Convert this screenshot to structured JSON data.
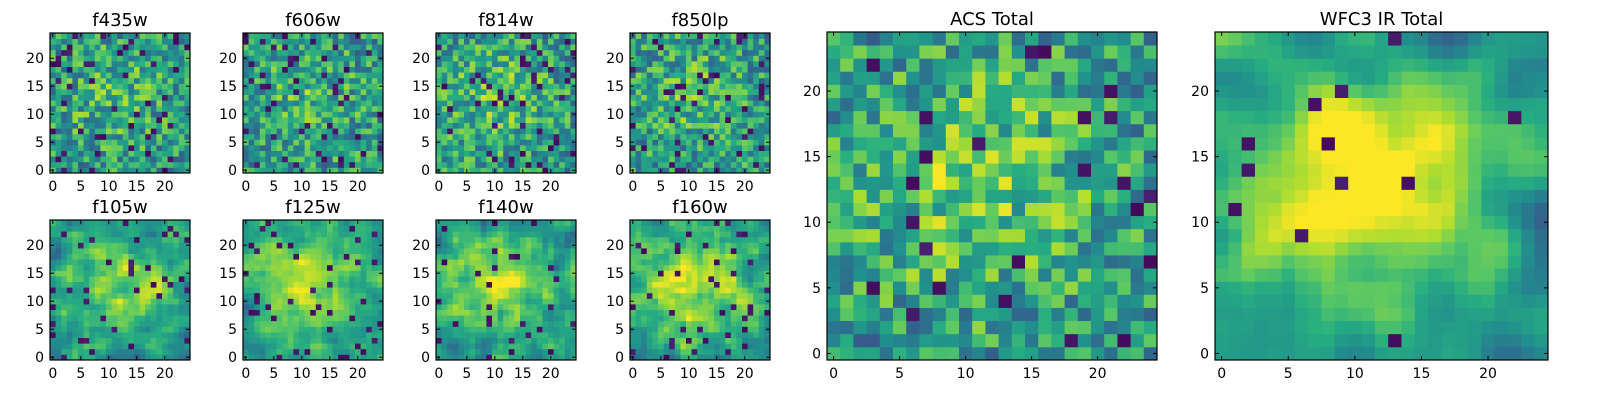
{
  "chart_data": [
    {
      "type": "heatmap",
      "title": "f435w",
      "grid": 25,
      "colormap": "viridis",
      "seed": 11,
      "smooth": 0,
      "centerBoost": 0.15,
      "dark": 0.09,
      "xticks": [
        0,
        5,
        10,
        15,
        20
      ],
      "yticks": [
        0,
        5,
        10,
        15,
        20
      ],
      "xlim": [
        -0.5,
        24.5
      ],
      "ylim": [
        -0.5,
        24.5
      ]
    },
    {
      "type": "heatmap",
      "title": "f606w",
      "grid": 25,
      "colormap": "viridis",
      "seed": 23,
      "smooth": 0,
      "centerBoost": 0.15,
      "dark": 0.08,
      "xticks": [
        0,
        5,
        10,
        15,
        20
      ],
      "yticks": [
        0,
        5,
        10,
        15,
        20
      ],
      "xlim": [
        -0.5,
        24.5
      ],
      "ylim": [
        -0.5,
        24.5
      ]
    },
    {
      "type": "heatmap",
      "title": "f814w",
      "grid": 25,
      "colormap": "viridis",
      "seed": 37,
      "smooth": 0,
      "centerBoost": 0.2,
      "dark": 0.07,
      "xticks": [
        0,
        5,
        10,
        15,
        20
      ],
      "yticks": [
        0,
        5,
        10,
        15,
        20
      ],
      "xlim": [
        -0.5,
        24.5
      ],
      "ylim": [
        -0.5,
        24.5
      ]
    },
    {
      "type": "heatmap",
      "title": "f850lp",
      "grid": 25,
      "colormap": "viridis",
      "seed": 41,
      "smooth": 0,
      "centerBoost": 0.15,
      "dark": 0.08,
      "xticks": [
        0,
        5,
        10,
        15,
        20
      ],
      "yticks": [
        0,
        5,
        10,
        15,
        20
      ],
      "xlim": [
        -0.5,
        24.5
      ],
      "ylim": [
        -0.5,
        24.5
      ]
    },
    {
      "type": "heatmap",
      "title": "f105w",
      "grid": 25,
      "colormap": "viridis",
      "seed": 53,
      "smooth": 1,
      "centerBoost": 0.35,
      "dark": 0.05,
      "xticks": [
        0,
        5,
        10,
        15,
        20
      ],
      "yticks": [
        0,
        5,
        10,
        15,
        20
      ],
      "xlim": [
        -0.5,
        24.5
      ],
      "ylim": [
        -0.5,
        24.5
      ]
    },
    {
      "type": "heatmap",
      "title": "f125w",
      "grid": 25,
      "colormap": "viridis",
      "seed": 67,
      "smooth": 1,
      "centerBoost": 0.35,
      "dark": 0.06,
      "xticks": [
        0,
        5,
        10,
        15,
        20
      ],
      "yticks": [
        0,
        5,
        10,
        15,
        20
      ],
      "xlim": [
        -0.5,
        24.5
      ],
      "ylim": [
        -0.5,
        24.5
      ]
    },
    {
      "type": "heatmap",
      "title": "f140w",
      "grid": 25,
      "colormap": "viridis",
      "seed": 79,
      "smooth": 1,
      "centerBoost": 0.4,
      "dark": 0.04,
      "xticks": [
        0,
        5,
        10,
        15,
        20
      ],
      "yticks": [
        0,
        5,
        10,
        15,
        20
      ],
      "xlim": [
        -0.5,
        24.5
      ],
      "ylim": [
        -0.5,
        24.5
      ]
    },
    {
      "type": "heatmap",
      "title": "f160w",
      "grid": 25,
      "colormap": "viridis",
      "seed": 83,
      "smooth": 1,
      "centerBoost": 0.4,
      "dark": 0.06,
      "xticks": [
        0,
        5,
        10,
        15,
        20
      ],
      "yticks": [
        0,
        5,
        10,
        15,
        20
      ],
      "xlim": [
        -0.5,
        24.5
      ],
      "ylim": [
        -0.5,
        24.5
      ]
    },
    {
      "type": "heatmap",
      "title": "ACS Total",
      "grid": 25,
      "colormap": "viridis",
      "seed": 97,
      "smooth": 0,
      "centerBoost": 0.25,
      "dark": 0.03,
      "xticks": [
        0,
        5,
        10,
        15,
        20
      ],
      "yticks": [
        0,
        5,
        10,
        15,
        20
      ],
      "xlim": [
        -0.5,
        24.5
      ],
      "ylim": [
        -0.5,
        24.5
      ]
    },
    {
      "type": "heatmap",
      "title": "WFC3 IR Total",
      "grid": 25,
      "colormap": "viridis",
      "seed": 101,
      "smooth": 2,
      "centerBoost": 0.6,
      "dark": 0.02,
      "xticks": [
        0,
        5,
        10,
        15,
        20
      ],
      "yticks": [
        0,
        5,
        10,
        15,
        20
      ],
      "xlim": [
        -0.5,
        24.5
      ],
      "ylim": [
        -0.5,
        24.5
      ]
    }
  ]
}
